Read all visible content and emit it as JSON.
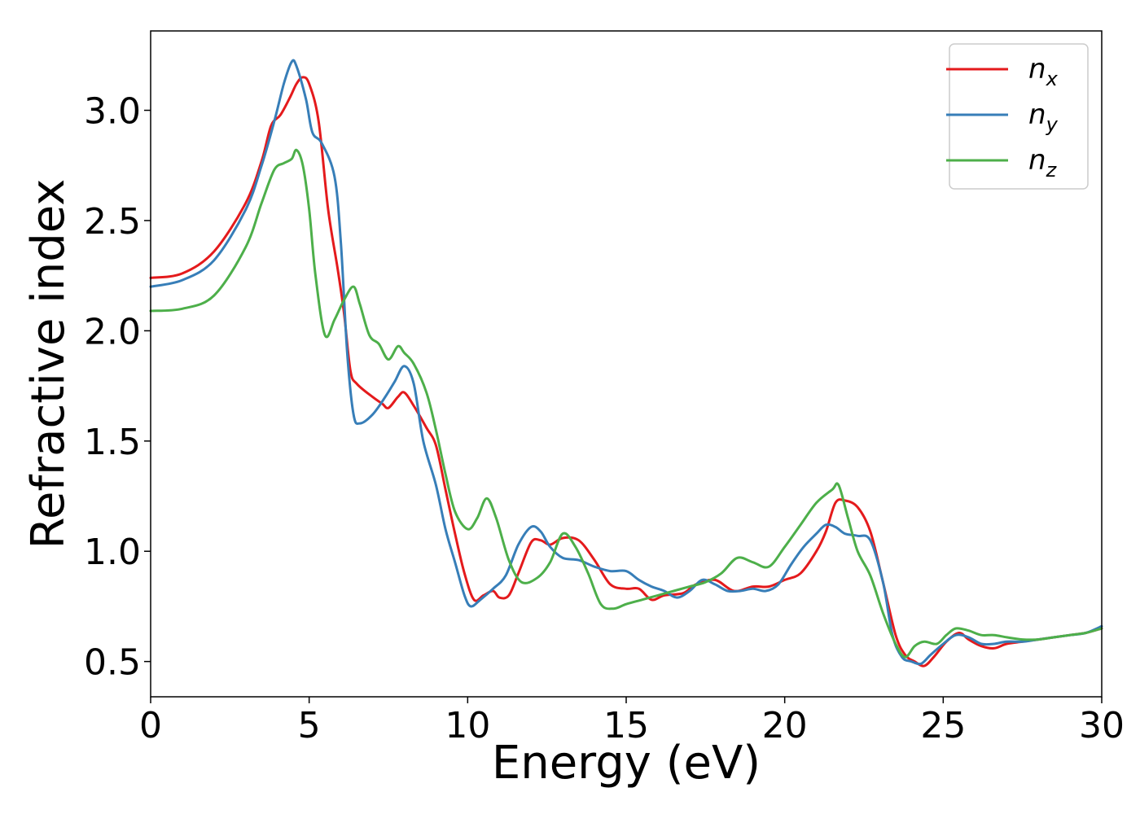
{
  "chart_data": {
    "type": "line",
    "xlabel": "Energy (eV)",
    "ylabel": "Refractive index",
    "xlim": [
      0,
      30
    ],
    "ylim": [
      0.34,
      3.36
    ],
    "xticks": [
      0,
      5,
      10,
      15,
      20,
      25,
      30
    ],
    "xtick_labels": [
      "0",
      "5",
      "10",
      "15",
      "20",
      "25",
      "30"
    ],
    "yticks": [
      0.5,
      1.0,
      1.5,
      2.0,
      2.5,
      3.0
    ],
    "ytick_labels": [
      "0.5",
      "1.0",
      "1.5",
      "2.0",
      "2.5",
      "3.0"
    ],
    "grid": false,
    "legend_position": "top-right",
    "series": [
      {
        "name": "n",
        "subscript": "x",
        "color": "#e41a1c",
        "points": [
          [
            0,
            2.24
          ],
          [
            1,
            2.26
          ],
          [
            2,
            2.36
          ],
          [
            3,
            2.58
          ],
          [
            3.5,
            2.77
          ],
          [
            3.8,
            2.93
          ],
          [
            4.1,
            2.98
          ],
          [
            4.4,
            3.06
          ],
          [
            4.6,
            3.12
          ],
          [
            4.8,
            3.15
          ],
          [
            5.0,
            3.12
          ],
          [
            5.3,
            2.95
          ],
          [
            5.6,
            2.55
          ],
          [
            5.9,
            2.28
          ],
          [
            6.1,
            2.08
          ],
          [
            6.3,
            1.82
          ],
          [
            6.5,
            1.76
          ],
          [
            7.0,
            1.7
          ],
          [
            7.3,
            1.67
          ],
          [
            7.5,
            1.65
          ],
          [
            7.8,
            1.7
          ],
          [
            8.0,
            1.72
          ],
          [
            8.3,
            1.66
          ],
          [
            8.7,
            1.56
          ],
          [
            9.0,
            1.48
          ],
          [
            9.3,
            1.28
          ],
          [
            9.6,
            1.08
          ],
          [
            9.9,
            0.9
          ],
          [
            10.2,
            0.78
          ],
          [
            10.5,
            0.8
          ],
          [
            10.8,
            0.82
          ],
          [
            11.0,
            0.79
          ],
          [
            11.3,
            0.8
          ],
          [
            11.6,
            0.9
          ],
          [
            12.0,
            1.04
          ],
          [
            12.3,
            1.05
          ],
          [
            12.6,
            1.03
          ],
          [
            13.0,
            1.06
          ],
          [
            13.5,
            1.05
          ],
          [
            14.0,
            0.96
          ],
          [
            14.5,
            0.85
          ],
          [
            15.0,
            0.83
          ],
          [
            15.4,
            0.83
          ],
          [
            15.8,
            0.78
          ],
          [
            16.2,
            0.8
          ],
          [
            16.8,
            0.81
          ],
          [
            17.2,
            0.85
          ],
          [
            17.8,
            0.87
          ],
          [
            18.4,
            0.82
          ],
          [
            19.0,
            0.84
          ],
          [
            19.5,
            0.84
          ],
          [
            20.0,
            0.87
          ],
          [
            20.5,
            0.9
          ],
          [
            21.0,
            1.0
          ],
          [
            21.3,
            1.09
          ],
          [
            21.6,
            1.22
          ],
          [
            21.9,
            1.23
          ],
          [
            22.3,
            1.2
          ],
          [
            22.7,
            1.09
          ],
          [
            23.1,
            0.86
          ],
          [
            23.5,
            0.62
          ],
          [
            23.8,
            0.53
          ],
          [
            24.1,
            0.5
          ],
          [
            24.4,
            0.48
          ],
          [
            24.7,
            0.52
          ],
          [
            25.1,
            0.59
          ],
          [
            25.5,
            0.63
          ],
          [
            25.8,
            0.6
          ],
          [
            26.2,
            0.57
          ],
          [
            26.6,
            0.56
          ],
          [
            27.0,
            0.58
          ],
          [
            27.5,
            0.59
          ],
          [
            28.0,
            0.6
          ],
          [
            28.5,
            0.61
          ],
          [
            29.0,
            0.62
          ],
          [
            29.5,
            0.63
          ],
          [
            30.0,
            0.65
          ]
        ]
      },
      {
        "name": "n",
        "subscript": "y",
        "color": "#377eb8",
        "points": [
          [
            0,
            2.2
          ],
          [
            1,
            2.23
          ],
          [
            2,
            2.32
          ],
          [
            3,
            2.55
          ],
          [
            3.5,
            2.75
          ],
          [
            3.9,
            2.95
          ],
          [
            4.2,
            3.12
          ],
          [
            4.45,
            3.22
          ],
          [
            4.6,
            3.2
          ],
          [
            4.9,
            3.05
          ],
          [
            5.1,
            2.9
          ],
          [
            5.4,
            2.85
          ],
          [
            5.8,
            2.7
          ],
          [
            6.0,
            2.4
          ],
          [
            6.2,
            1.9
          ],
          [
            6.4,
            1.62
          ],
          [
            6.6,
            1.58
          ],
          [
            7.0,
            1.62
          ],
          [
            7.4,
            1.7
          ],
          [
            7.7,
            1.77
          ],
          [
            8.0,
            1.84
          ],
          [
            8.3,
            1.76
          ],
          [
            8.6,
            1.5
          ],
          [
            9.0,
            1.3
          ],
          [
            9.3,
            1.1
          ],
          [
            9.6,
            0.95
          ],
          [
            9.9,
            0.8
          ],
          [
            10.1,
            0.75
          ],
          [
            10.4,
            0.78
          ],
          [
            10.8,
            0.83
          ],
          [
            11.2,
            0.89
          ],
          [
            11.6,
            1.03
          ],
          [
            12.0,
            1.11
          ],
          [
            12.3,
            1.09
          ],
          [
            12.6,
            1.02
          ],
          [
            13.0,
            0.97
          ],
          [
            13.5,
            0.96
          ],
          [
            14.0,
            0.93
          ],
          [
            14.5,
            0.91
          ],
          [
            15.0,
            0.91
          ],
          [
            15.4,
            0.87
          ],
          [
            15.8,
            0.84
          ],
          [
            16.2,
            0.82
          ],
          [
            16.6,
            0.79
          ],
          [
            17.0,
            0.82
          ],
          [
            17.4,
            0.87
          ],
          [
            17.8,
            0.85
          ],
          [
            18.2,
            0.82
          ],
          [
            18.6,
            0.82
          ],
          [
            19.0,
            0.83
          ],
          [
            19.4,
            0.82
          ],
          [
            19.8,
            0.85
          ],
          [
            20.2,
            0.94
          ],
          [
            20.6,
            1.02
          ],
          [
            21.0,
            1.08
          ],
          [
            21.3,
            1.12
          ],
          [
            21.6,
            1.11
          ],
          [
            21.9,
            1.08
          ],
          [
            22.3,
            1.07
          ],
          [
            22.7,
            1.05
          ],
          [
            23.1,
            0.86
          ],
          [
            23.4,
            0.62
          ],
          [
            23.7,
            0.52
          ],
          [
            24.0,
            0.5
          ],
          [
            24.3,
            0.49
          ],
          [
            24.6,
            0.53
          ],
          [
            25.0,
            0.58
          ],
          [
            25.4,
            0.62
          ],
          [
            25.8,
            0.61
          ],
          [
            26.2,
            0.58
          ],
          [
            26.6,
            0.58
          ],
          [
            27.0,
            0.59
          ],
          [
            27.5,
            0.59
          ],
          [
            28.0,
            0.6
          ],
          [
            28.5,
            0.61
          ],
          [
            29.0,
            0.62
          ],
          [
            29.5,
            0.63
          ],
          [
            30.0,
            0.66
          ]
        ]
      },
      {
        "name": "n",
        "subscript": "z",
        "color": "#4daf4a",
        "points": [
          [
            0,
            2.09
          ],
          [
            1,
            2.1
          ],
          [
            2,
            2.16
          ],
          [
            3,
            2.38
          ],
          [
            3.5,
            2.58
          ],
          [
            3.9,
            2.73
          ],
          [
            4.2,
            2.76
          ],
          [
            4.45,
            2.78
          ],
          [
            4.6,
            2.82
          ],
          [
            4.8,
            2.75
          ],
          [
            5.0,
            2.55
          ],
          [
            5.2,
            2.25
          ],
          [
            5.5,
            1.98
          ],
          [
            5.8,
            2.05
          ],
          [
            6.1,
            2.14
          ],
          [
            6.4,
            2.2
          ],
          [
            6.6,
            2.12
          ],
          [
            6.9,
            1.98
          ],
          [
            7.2,
            1.94
          ],
          [
            7.5,
            1.87
          ],
          [
            7.8,
            1.93
          ],
          [
            8.0,
            1.9
          ],
          [
            8.3,
            1.85
          ],
          [
            8.7,
            1.72
          ],
          [
            9.0,
            1.55
          ],
          [
            9.3,
            1.35
          ],
          [
            9.6,
            1.18
          ],
          [
            10.0,
            1.1
          ],
          [
            10.3,
            1.15
          ],
          [
            10.6,
            1.24
          ],
          [
            10.9,
            1.15
          ],
          [
            11.3,
            0.96
          ],
          [
            11.7,
            0.86
          ],
          [
            12.2,
            0.88
          ],
          [
            12.6,
            0.95
          ],
          [
            13.0,
            1.08
          ],
          [
            13.4,
            1.02
          ],
          [
            13.8,
            0.9
          ],
          [
            14.2,
            0.76
          ],
          [
            14.6,
            0.74
          ],
          [
            15.0,
            0.76
          ],
          [
            15.5,
            0.78
          ],
          [
            16.0,
            0.8
          ],
          [
            16.5,
            0.82
          ],
          [
            17.0,
            0.84
          ],
          [
            17.5,
            0.86
          ],
          [
            18.0,
            0.9
          ],
          [
            18.5,
            0.97
          ],
          [
            19.0,
            0.95
          ],
          [
            19.5,
            0.93
          ],
          [
            20.0,
            1.02
          ],
          [
            20.5,
            1.12
          ],
          [
            21.0,
            1.22
          ],
          [
            21.5,
            1.28
          ],
          [
            21.7,
            1.3
          ],
          [
            22.0,
            1.15
          ],
          [
            22.3,
            1.0
          ],
          [
            22.7,
            0.89
          ],
          [
            23.1,
            0.72
          ],
          [
            23.5,
            0.58
          ],
          [
            23.8,
            0.52
          ],
          [
            24.1,
            0.57
          ],
          [
            24.4,
            0.59
          ],
          [
            24.8,
            0.58
          ],
          [
            25.1,
            0.62
          ],
          [
            25.4,
            0.65
          ],
          [
            25.8,
            0.64
          ],
          [
            26.2,
            0.62
          ],
          [
            26.6,
            0.62
          ],
          [
            27.0,
            0.61
          ],
          [
            27.5,
            0.6
          ],
          [
            28.0,
            0.6
          ],
          [
            28.5,
            0.61
          ],
          [
            29.0,
            0.62
          ],
          [
            29.5,
            0.63
          ],
          [
            30.0,
            0.65
          ]
        ]
      }
    ]
  }
}
